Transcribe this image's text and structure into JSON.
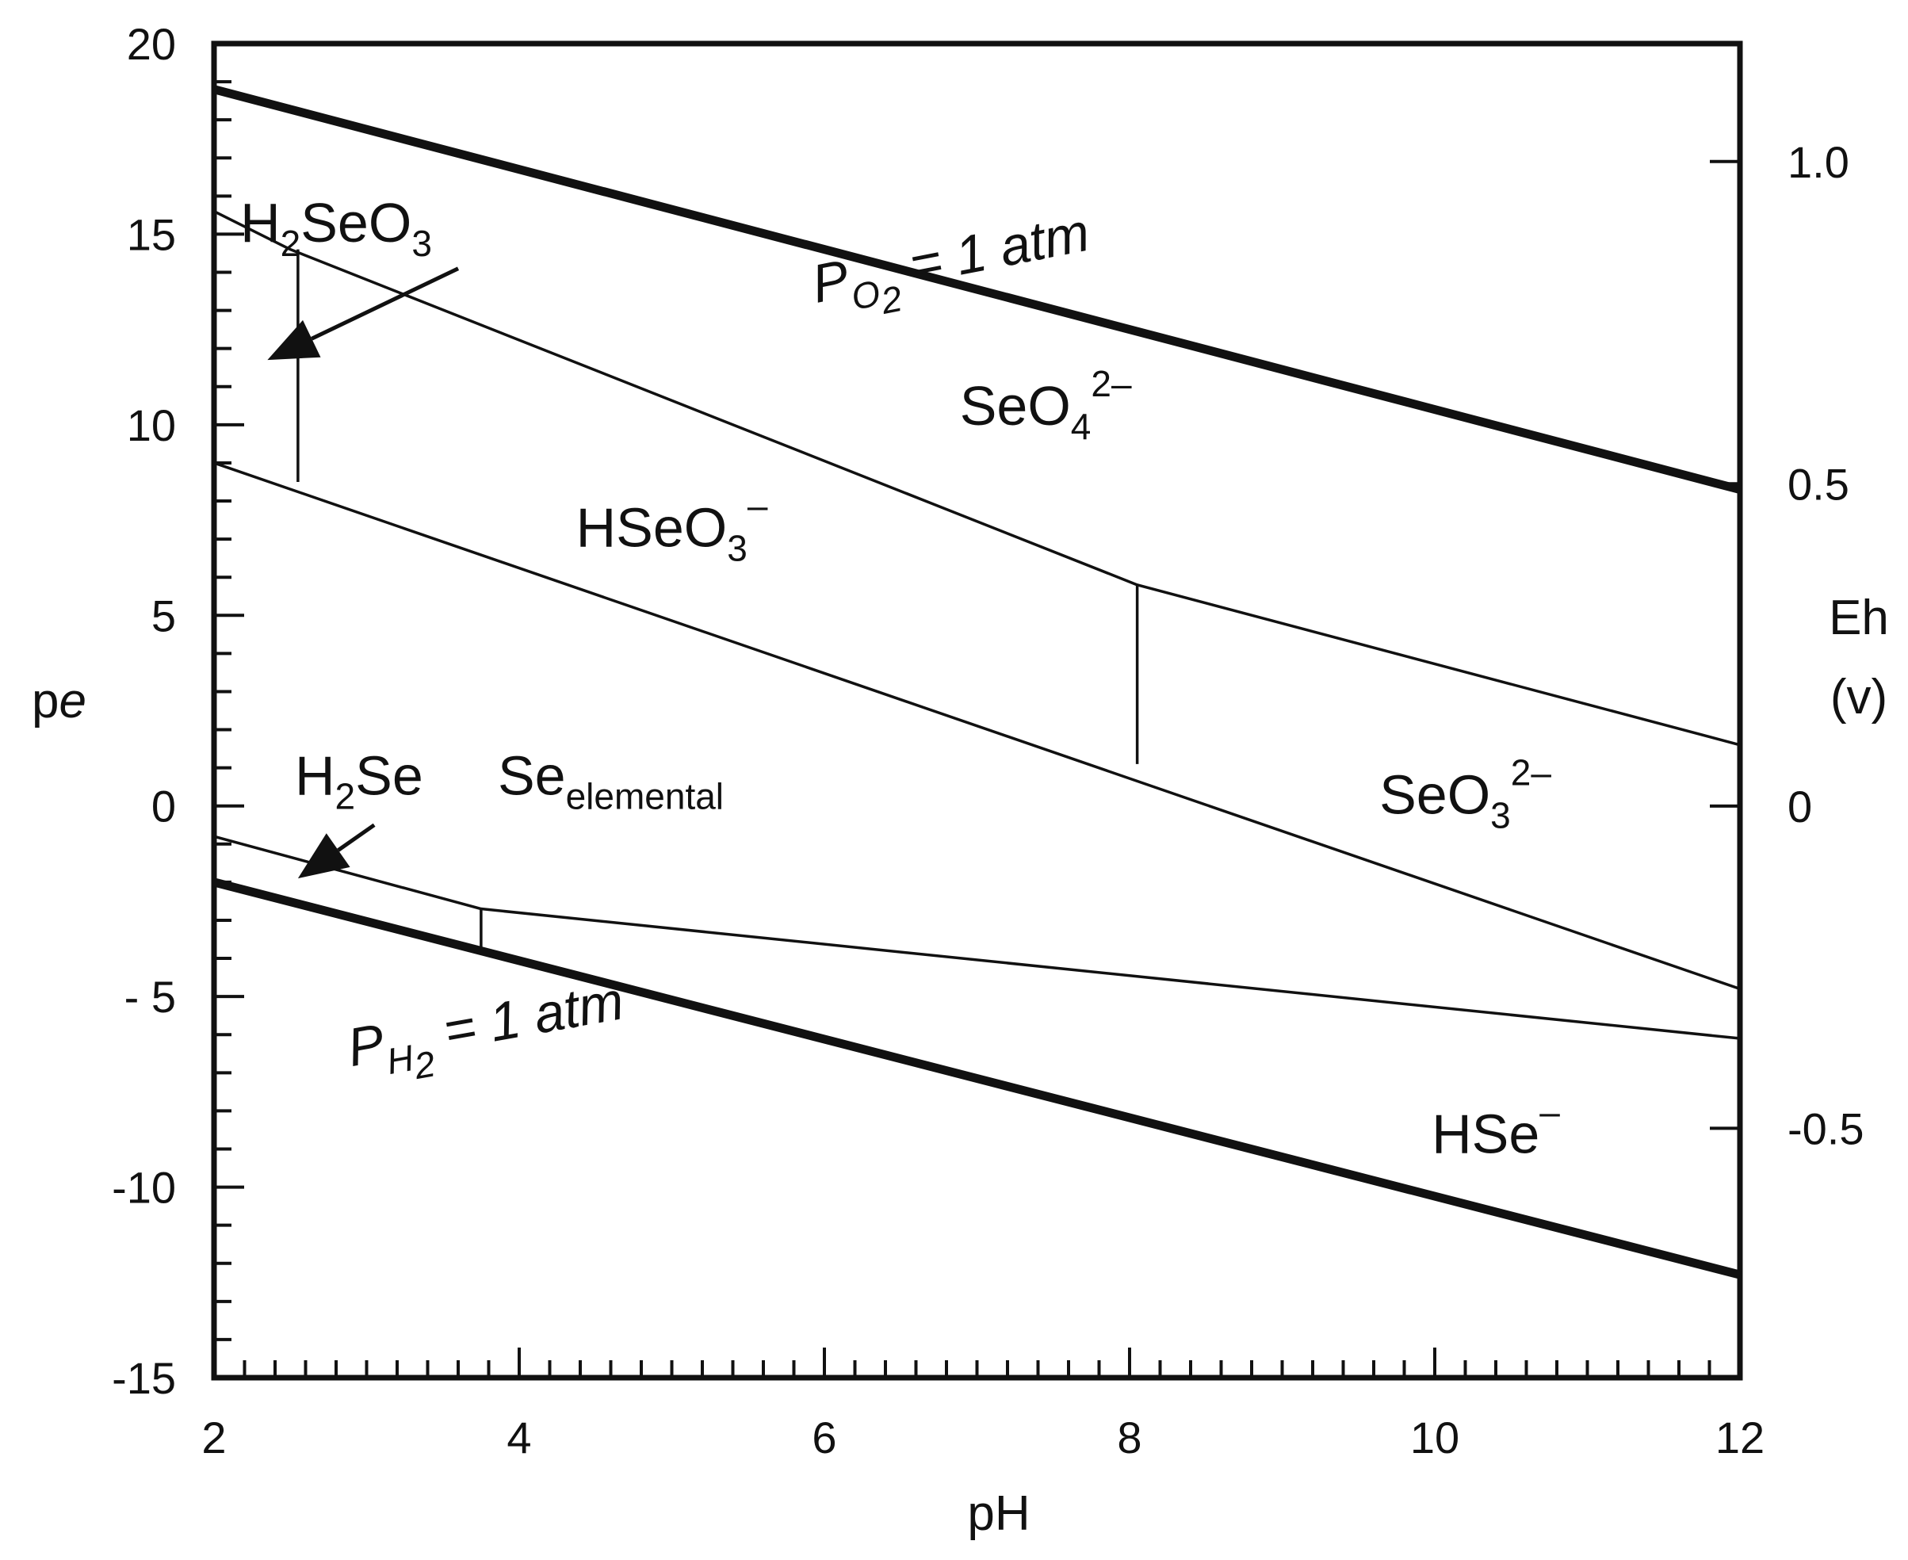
{
  "chart_data": {
    "type": "line",
    "xlabel": "pH",
    "ylabel": "pe",
    "ylabel_italic_part": "e",
    "ylabel_prefix": "p",
    "y2label_line1": "Eh",
    "y2label_line2": "(v)",
    "xlim": [
      2,
      12
    ],
    "ylim": [
      -15,
      20
    ],
    "y2lim": [
      -0.887,
      1.183
    ],
    "grid": false,
    "x_ticks": [
      {
        "value": 2,
        "label": "2"
      },
      {
        "value": 4,
        "label": "4"
      },
      {
        "value": 6,
        "label": "6"
      },
      {
        "value": 8,
        "label": "8"
      },
      {
        "value": 10,
        "label": "10"
      },
      {
        "value": 12,
        "label": "12"
      }
    ],
    "y_ticks": [
      {
        "value": 20,
        "label": "20"
      },
      {
        "value": 15,
        "label": "15"
      },
      {
        "value": 10,
        "label": "10"
      },
      {
        "value": 5,
        "label": "5"
      },
      {
        "value": 0,
        "label": "0"
      },
      {
        "value": -5,
        "label": "- 5"
      },
      {
        "value": -10,
        "label": "-10"
      },
      {
        "value": -15,
        "label": "-15"
      }
    ],
    "y2_ticks": [
      {
        "value": 1.0,
        "label": "1.0"
      },
      {
        "value": 0.5,
        "label": "0.5"
      },
      {
        "value": 0,
        "label": "0"
      },
      {
        "value": -0.5,
        "label": "-0.5"
      }
    ],
    "lines": [
      {
        "id": "o2-boundary",
        "style": "thick",
        "points": [
          [
            2,
            18.8
          ],
          [
            12,
            8.3
          ]
        ]
      },
      {
        "id": "h2-boundary",
        "style": "thick",
        "points": [
          [
            2,
            -2.0
          ],
          [
            12,
            -12.3
          ]
        ]
      },
      {
        "id": "selenite-selenate",
        "style": "thin",
        "points": [
          [
            2,
            15.6
          ],
          [
            2.5,
            14.6
          ],
          [
            8.05,
            5.8
          ],
          [
            12,
            1.6
          ]
        ]
      },
      {
        "id": "elemental-upper",
        "style": "thin",
        "points": [
          [
            2,
            9.0
          ],
          [
            12,
            -4.8
          ]
        ]
      },
      {
        "id": "h2se-hse",
        "style": "thin",
        "points": [
          [
            2,
            -0.8
          ],
          [
            3.75,
            -2.7
          ],
          [
            12,
            -6.1
          ]
        ]
      },
      {
        "id": "h2seo3-hseo3-divider",
        "style": "thin",
        "points": [
          [
            2.55,
            14.6
          ],
          [
            2.55,
            8.5
          ]
        ]
      },
      {
        "id": "hseo3-seo3-divider",
        "style": "thin",
        "points": [
          [
            8.05,
            5.8
          ],
          [
            8.05,
            1.1
          ]
        ]
      },
      {
        "id": "h2se-divider",
        "style": "thin",
        "points": [
          [
            3.75,
            -2.7
          ],
          [
            3.75,
            -3.7
          ]
        ]
      }
    ],
    "arrows": [
      {
        "id": "h2seo3-arrow",
        "from": [
          3.6,
          14.1
        ],
        "to": [
          2.35,
          11.7
        ]
      },
      {
        "id": "h2se-arrow",
        "from": [
          3.05,
          -0.5
        ],
        "to": [
          2.55,
          -1.9
        ]
      }
    ],
    "annotations": [
      {
        "id": "po2-label",
        "parts": [
          {
            "t": "P",
            "s": ""
          },
          {
            "t": "O",
            "s": "sub"
          },
          {
            "t": "2",
            "s": "subsub"
          },
          {
            "t": " = 1 atm",
            "s": ""
          }
        ],
        "x": 6.85,
        "y": 13.9,
        "rotate": -11,
        "italic": true
      },
      {
        "id": "ph2-label",
        "parts": [
          {
            "t": "P",
            "s": ""
          },
          {
            "t": "H",
            "s": "sub"
          },
          {
            "t": "2",
            "s": "subsub"
          },
          {
            "t": " = 1 atm",
            "s": ""
          }
        ],
        "x": 3.8,
        "y": -6.2,
        "rotate": -10,
        "italic": true
      },
      {
        "id": "h2seo3-label",
        "parts": [
          {
            "t": "H",
            "s": ""
          },
          {
            "t": "2",
            "s": "sub"
          },
          {
            "t": "SeO",
            "s": ""
          },
          {
            "t": "3",
            "s": "sub"
          }
        ],
        "x": 2.8,
        "y": 14.8
      },
      {
        "id": "seo4-label",
        "parts": [
          {
            "t": "SeO",
            "s": ""
          },
          {
            "t": "4",
            "s": "sub"
          },
          {
            "t": "2–",
            "s": "sup"
          }
        ],
        "x": 7.45,
        "y": 10.0
      },
      {
        "id": "hseo3-label",
        "parts": [
          {
            "t": "HSeO",
            "s": ""
          },
          {
            "t": "3",
            "s": "sub"
          },
          {
            "t": "–",
            "s": "sup"
          }
        ],
        "x": 5.0,
        "y": 6.8
      },
      {
        "id": "seo3-label",
        "parts": [
          {
            "t": "SeO",
            "s": ""
          },
          {
            "t": "3",
            "s": "sub"
          },
          {
            "t": "2–",
            "s": "sup"
          }
        ],
        "x": 10.2,
        "y": -0.2
      },
      {
        "id": "se-elemental-label",
        "parts": [
          {
            "t": "Se",
            "s": ""
          },
          {
            "t": "elemental",
            "s": "sub"
          }
        ],
        "x": 4.6,
        "y": 0.3
      },
      {
        "id": "h2se-label",
        "parts": [
          {
            "t": "H",
            "s": ""
          },
          {
            "t": "2",
            "s": "sub"
          },
          {
            "t": "Se",
            "s": ""
          }
        ],
        "x": 2.95,
        "y": 0.3
      },
      {
        "id": "hse-label",
        "parts": [
          {
            "t": "HSe",
            "s": ""
          },
          {
            "t": "–",
            "s": "sup"
          }
        ],
        "x": 10.4,
        "y": -9.1
      }
    ]
  }
}
